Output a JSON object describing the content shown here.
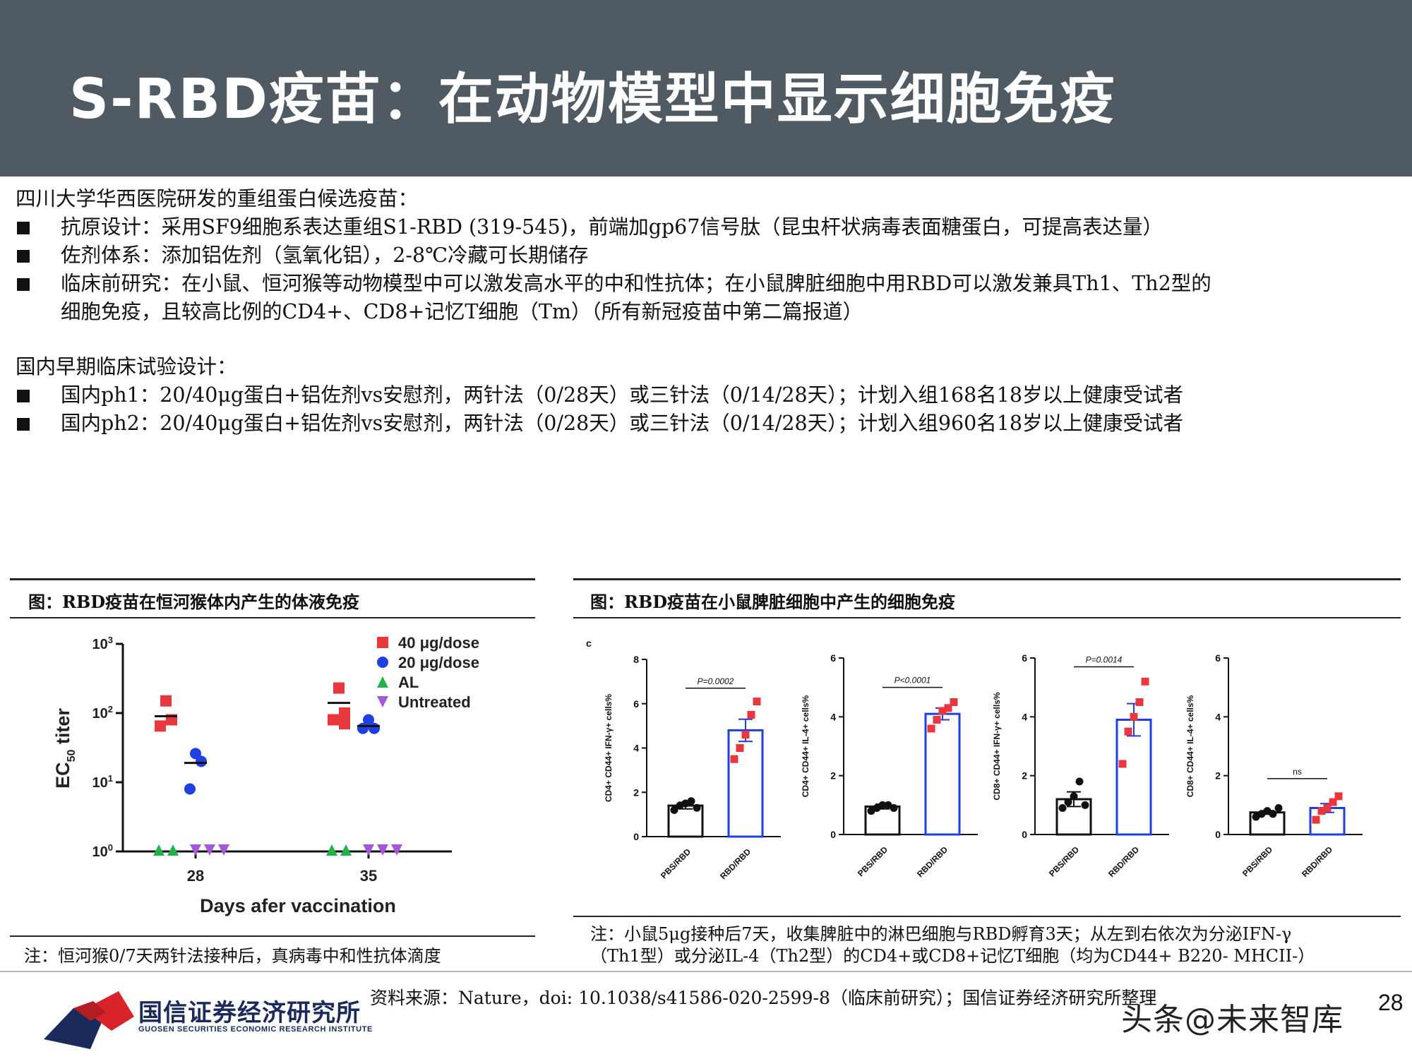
{
  "header": {
    "title": "S-RBD疫苗：在动物模型中显示细胞免疫"
  },
  "body": {
    "intro": "四川大学华西医院研发的重组蛋白候选疫苗：",
    "bullets": [
      "抗原设计：采用SF9细胞系表达重组S1-RBD (319-545)，前端加gp67信号肽（昆虫杆状病毒表面糖蛋白，可提高表达量）",
      "佐剂体系：添加铝佐剂（氢氧化铝），2-8℃冷藏可长期储存",
      "临床前研究：在小鼠、恒河猴等动物模型中可以激发高水平的中和性抗体；在小鼠脾脏细胞中用RBD可以激发兼具Th1、Th2型的"
    ],
    "bullet3_cont": "细胞免疫，且较高比例的CD4+、CD8+记忆T细胞（Tm）（所有新冠疫苗中第二篇报道）",
    "section2": "国内早期临床试验设计：",
    "bullets2": [
      "国内ph1：20/40μg蛋白+铝佐剂vs安慰剂，两针法（0/28天）或三针法（0/14/28天）；计划入组168名18岁以上健康受试者",
      "国内ph2：20/40μg蛋白+铝佐剂vs安慰剂，两针法（0/28天）或三针法（0/14/28天）；计划入组960名18岁以上健康受试者"
    ]
  },
  "panel_left": {
    "title": "图：RBD疫苗在恒河猴体内产生的体液免疫",
    "note": "注：恒河猴0/7天两针法接种后，真病毒中和性抗体滴度"
  },
  "panel_right": {
    "title": "图：RBD疫苗在小鼠脾脏细胞中产生的细胞免疫",
    "note_line1": "注：小鼠5μg接种后7天，收集脾脏中的淋巴细胞与RBD孵育3天；从左到右依次为分泌IFN-γ",
    "note_line2": "（Th1型）或分泌IL-4（Th2型）的CD4+或CD8+记忆T细胞（均为CD44+ B220- MHCII-）"
  },
  "chart_data": [
    {
      "type": "scatter",
      "xlabel": "Days afer vaccination",
      "ylabel": "EC50 titer",
      "y_scale": "log",
      "ylim": [
        1,
        1000
      ],
      "y_ticks": [
        "10^0",
        "10^1",
        "10^2",
        "10^3"
      ],
      "x_ticks": [
        "28",
        "35"
      ],
      "legend_position": "top-right",
      "series": [
        {
          "name": "40 μg/dose",
          "color": "#e8383d",
          "marker": "square",
          "points": [
            {
              "day": 28,
              "values": [
                150,
                80,
                65
              ],
              "mean": 90
            },
            {
              "day": 35,
              "values": [
                230,
                100,
                80,
                70
              ],
              "mean": 140
            }
          ]
        },
        {
          "name": "20 μg/dose",
          "color": "#1f3fe0",
          "marker": "circle",
          "points": [
            {
              "day": 28,
              "values": [
                26,
                20,
                8
              ],
              "mean": 19
            },
            {
              "day": 35,
              "values": [
                80,
                60,
                60
              ],
              "mean": 65
            }
          ]
        },
        {
          "name": "AL",
          "color": "#22b24c",
          "marker": "triangle",
          "points": [
            {
              "day": 28,
              "values": [
                1,
                1
              ]
            },
            {
              "day": 35,
              "values": [
                1,
                1
              ]
            }
          ]
        },
        {
          "name": "Untreated",
          "color": "#a45ad8",
          "marker": "triangle-down",
          "points": [
            {
              "day": 28,
              "values": [
                1,
                1,
                1
              ]
            },
            {
              "day": 35,
              "values": [
                1,
                1,
                1
              ]
            }
          ]
        }
      ]
    },
    {
      "type": "bar",
      "panel_label": "c",
      "subplots": [
        {
          "ylabel": "CD4+ CD44+ IFN-γ+ cells%",
          "ylim": [
            0,
            8
          ],
          "y_ticks": [
            "0",
            "2",
            "4",
            "6",
            "8"
          ],
          "categories": [
            "PBS/RBD",
            "RBD/RBD"
          ],
          "values": [
            1.4,
            4.8
          ],
          "error": [
            0.15,
            0.5
          ],
          "points": [
            [
              1.2,
              1.4,
              1.5,
              1.6,
              1.3
            ],
            [
              3.5,
              4.0,
              4.6,
              5.5,
              6.1
            ]
          ],
          "p_value": "P=0.0002"
        },
        {
          "ylabel": "CD4+ CD44+ IL-4+ cells%",
          "ylim": [
            0,
            6
          ],
          "y_ticks": [
            "0",
            "2",
            "4",
            "6"
          ],
          "categories": [
            "PBS/RBD",
            "RBD/RBD"
          ],
          "values": [
            0.95,
            4.1
          ],
          "error": [
            0.08,
            0.2
          ],
          "points": [
            [
              0.8,
              0.9,
              1.0,
              1.0,
              0.9
            ],
            [
              3.6,
              3.9,
              4.2,
              4.3,
              4.5
            ]
          ],
          "p_value": "P<0.0001"
        },
        {
          "ylabel": "CD8+ CD44+ IFN-γ+ cells%",
          "ylim": [
            0,
            6
          ],
          "y_ticks": [
            "0",
            "2",
            "4",
            "6"
          ],
          "categories": [
            "PBS/RBD",
            "RBD/RBD"
          ],
          "values": [
            1.2,
            3.9
          ],
          "error": [
            0.25,
            0.55
          ],
          "points": [
            [
              0.9,
              1.1,
              1.3,
              1.8,
              1.0
            ],
            [
              2.4,
              3.5,
              4.0,
              4.5,
              5.2
            ]
          ],
          "p_value": "P=0.0014"
        },
        {
          "ylabel": "CD8+ CD44+ IL-4+ cells%",
          "ylim": [
            0,
            6
          ],
          "y_ticks": [
            "0",
            "2",
            "4",
            "6"
          ],
          "categories": [
            "PBS/RBD",
            "RBD/RBD"
          ],
          "values": [
            0.75,
            0.9
          ],
          "error": [
            0.06,
            0.15
          ],
          "points": [
            [
              0.6,
              0.7,
              0.8,
              0.7,
              0.9
            ],
            [
              0.5,
              0.8,
              0.9,
              1.1,
              1.3
            ]
          ],
          "p_value": "ns"
        }
      ]
    }
  ],
  "footer": {
    "logo_cn": "国信证券经济研究所",
    "logo_en": "GUOSEN SECURITIES ECONOMIC RESEARCH INSTITUTE",
    "source": "资料来源：Nature，doi: 10.1038/s41586-020-2599-8（临床前研究）；国信证券经济研究所整理",
    "watermark": "头条@未来智库",
    "page_number": "28"
  },
  "colors": {
    "header_bg": "#505a62",
    "red": "#e8383d",
    "blue": "#1f3fe0",
    "green": "#22b24c",
    "purple": "#a45ad8",
    "logo_red": "#d8232a",
    "logo_navy": "#1a2a5a"
  }
}
